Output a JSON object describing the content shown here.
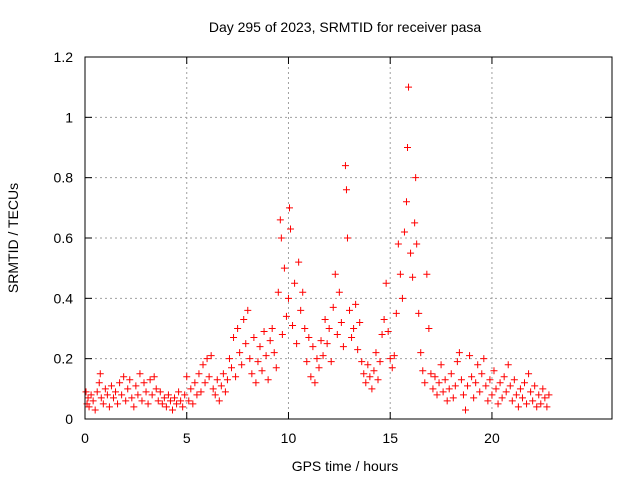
{
  "chart_data": {
    "type": "scatter",
    "title": "Day 295 of 2023, SRMTID for receiver pasa",
    "xlabel": "GPS time / hours",
    "ylabel": "SRMTID / TECUs",
    "xlim": [
      0,
      25.9
    ],
    "ylim": [
      0,
      1.2
    ],
    "xticks": [
      0,
      5,
      10,
      15,
      20
    ],
    "xtick_labels": [
      "0",
      "5",
      "10",
      "15",
      "20"
    ],
    "yticks": [
      0,
      0.2,
      0.4,
      0.6,
      0.8,
      1.0,
      1.2
    ],
    "ytick_labels": [
      "0",
      "0.2",
      "0.4",
      "0.6",
      "0.8",
      "1",
      "1.2"
    ],
    "grid": true,
    "marker": "+",
    "series": [
      {
        "name": "SRMTID",
        "color": "#ff0000",
        "points": [
          [
            0.05,
            0.09
          ],
          [
            0.1,
            0.05
          ],
          [
            0.15,
            0.07
          ],
          [
            0.2,
            0.04
          ],
          [
            0.3,
            0.08
          ],
          [
            0.4,
            0.06
          ],
          [
            0.5,
            0.03
          ],
          [
            0.6,
            0.09
          ],
          [
            0.7,
            0.12
          ],
          [
            0.75,
            0.15
          ],
          [
            0.8,
            0.07
          ],
          [
            0.9,
            0.05
          ],
          [
            1.0,
            0.1
          ],
          [
            1.1,
            0.08
          ],
          [
            1.2,
            0.04
          ],
          [
            1.3,
            0.11
          ],
          [
            1.4,
            0.07
          ],
          [
            1.5,
            0.09
          ],
          [
            1.6,
            0.05
          ],
          [
            1.7,
            0.12
          ],
          [
            1.8,
            0.08
          ],
          [
            1.9,
            0.14
          ],
          [
            2.0,
            0.06
          ],
          [
            2.1,
            0.1
          ],
          [
            2.2,
            0.13
          ],
          [
            2.3,
            0.07
          ],
          [
            2.4,
            0.04
          ],
          [
            2.5,
            0.11
          ],
          [
            2.6,
            0.08
          ],
          [
            2.7,
            0.15
          ],
          [
            2.8,
            0.06
          ],
          [
            2.9,
            0.12
          ],
          [
            3.0,
            0.09
          ],
          [
            3.1,
            0.05
          ],
          [
            3.2,
            0.13
          ],
          [
            3.3,
            0.08
          ],
          [
            3.4,
            0.14
          ],
          [
            3.5,
            0.1
          ],
          [
            3.6,
            0.06
          ],
          [
            3.7,
            0.09
          ],
          [
            3.8,
            0.05
          ],
          [
            3.9,
            0.07
          ],
          [
            4.0,
            0.04
          ],
          [
            4.1,
            0.08
          ],
          [
            4.2,
            0.06
          ],
          [
            4.3,
            0.03
          ],
          [
            4.4,
            0.07
          ],
          [
            4.5,
            0.05
          ],
          [
            4.6,
            0.09
          ],
          [
            4.7,
            0.06
          ],
          [
            4.8,
            0.04
          ],
          [
            4.9,
            0.08
          ],
          [
            5.0,
            0.14
          ],
          [
            5.1,
            0.06
          ],
          [
            5.2,
            0.1
          ],
          [
            5.3,
            0.05
          ],
          [
            5.4,
            0.12
          ],
          [
            5.5,
            0.08
          ],
          [
            5.6,
            0.15
          ],
          [
            5.7,
            0.09
          ],
          [
            5.8,
            0.18
          ],
          [
            5.9,
            0.12
          ],
          [
            6.0,
            0.2
          ],
          [
            6.1,
            0.14
          ],
          [
            6.2,
            0.21
          ],
          [
            6.3,
            0.1
          ],
          [
            6.4,
            0.08
          ],
          [
            6.5,
            0.13
          ],
          [
            6.6,
            0.06
          ],
          [
            6.7,
            0.11
          ],
          [
            6.8,
            0.15
          ],
          [
            6.9,
            0.09
          ],
          [
            7.0,
            0.13
          ],
          [
            7.1,
            0.2
          ],
          [
            7.2,
            0.17
          ],
          [
            7.3,
            0.27
          ],
          [
            7.4,
            0.14
          ],
          [
            7.5,
            0.3
          ],
          [
            7.6,
            0.22
          ],
          [
            7.7,
            0.18
          ],
          [
            7.8,
            0.33
          ],
          [
            7.9,
            0.25
          ],
          [
            8.0,
            0.36
          ],
          [
            8.1,
            0.2
          ],
          [
            8.2,
            0.15
          ],
          [
            8.3,
            0.27
          ],
          [
            8.4,
            0.12
          ],
          [
            8.5,
            0.19
          ],
          [
            8.6,
            0.24
          ],
          [
            8.7,
            0.16
          ],
          [
            8.8,
            0.29
          ],
          [
            8.9,
            0.21
          ],
          [
            9.0,
            0.13
          ],
          [
            9.1,
            0.26
          ],
          [
            9.2,
            0.3
          ],
          [
            9.3,
            0.22
          ],
          [
            9.4,
            0.17
          ],
          [
            9.5,
            0.42
          ],
          [
            9.6,
            0.66
          ],
          [
            9.65,
            0.6
          ],
          [
            9.7,
            0.28
          ],
          [
            9.8,
            0.5
          ],
          [
            9.9,
            0.34
          ],
          [
            10.0,
            0.4
          ],
          [
            10.05,
            0.7
          ],
          [
            10.1,
            0.63
          ],
          [
            10.2,
            0.31
          ],
          [
            10.3,
            0.45
          ],
          [
            10.4,
            0.25
          ],
          [
            10.5,
            0.52
          ],
          [
            10.6,
            0.36
          ],
          [
            10.7,
            0.42
          ],
          [
            10.8,
            0.3
          ],
          [
            10.9,
            0.19
          ],
          [
            11.0,
            0.27
          ],
          [
            11.1,
            0.14
          ],
          [
            11.2,
            0.24
          ],
          [
            11.3,
            0.12
          ],
          [
            11.4,
            0.2
          ],
          [
            11.5,
            0.17
          ],
          [
            11.6,
            0.26
          ],
          [
            11.7,
            0.21
          ],
          [
            11.8,
            0.33
          ],
          [
            11.9,
            0.25
          ],
          [
            12.0,
            0.3
          ],
          [
            12.1,
            0.19
          ],
          [
            12.2,
            0.37
          ],
          [
            12.3,
            0.48
          ],
          [
            12.4,
            0.28
          ],
          [
            12.5,
            0.42
          ],
          [
            12.6,
            0.32
          ],
          [
            12.7,
            0.24
          ],
          [
            12.8,
            0.84
          ],
          [
            12.85,
            0.76
          ],
          [
            12.9,
            0.6
          ],
          [
            13.0,
            0.36
          ],
          [
            13.1,
            0.27
          ],
          [
            13.2,
            0.3
          ],
          [
            13.3,
            0.38
          ],
          [
            13.4,
            0.23
          ],
          [
            13.5,
            0.32
          ],
          [
            13.6,
            0.19
          ],
          [
            13.7,
            0.15
          ],
          [
            13.8,
            0.12
          ],
          [
            13.9,
            0.18
          ],
          [
            14.0,
            0.14
          ],
          [
            14.1,
            0.1
          ],
          [
            14.2,
            0.16
          ],
          [
            14.3,
            0.22
          ],
          [
            14.4,
            0.13
          ],
          [
            14.5,
            0.19
          ],
          [
            14.6,
            0.28
          ],
          [
            14.7,
            0.33
          ],
          [
            14.8,
            0.45
          ],
          [
            14.9,
            0.29
          ],
          [
            15.0,
            0.2
          ],
          [
            15.1,
            0.17
          ],
          [
            15.2,
            0.21
          ],
          [
            15.3,
            0.35
          ],
          [
            15.4,
            0.58
          ],
          [
            15.5,
            0.48
          ],
          [
            15.6,
            0.4
          ],
          [
            15.7,
            0.62
          ],
          [
            15.8,
            0.72
          ],
          [
            15.85,
            0.9
          ],
          [
            15.9,
            1.1
          ],
          [
            16.0,
            0.55
          ],
          [
            16.1,
            0.47
          ],
          [
            16.2,
            0.65
          ],
          [
            16.25,
            0.8
          ],
          [
            16.3,
            0.58
          ],
          [
            16.4,
            0.35
          ],
          [
            16.5,
            0.22
          ],
          [
            16.6,
            0.16
          ],
          [
            16.7,
            0.12
          ],
          [
            16.8,
            0.48
          ],
          [
            16.9,
            0.3
          ],
          [
            17.0,
            0.15
          ],
          [
            17.1,
            0.1
          ],
          [
            17.2,
            0.14
          ],
          [
            17.3,
            0.08
          ],
          [
            17.4,
            0.12
          ],
          [
            17.5,
            0.18
          ],
          [
            17.6,
            0.09
          ],
          [
            17.7,
            0.13
          ],
          [
            17.8,
            0.06
          ],
          [
            17.9,
            0.1
          ],
          [
            18.0,
            0.15
          ],
          [
            18.1,
            0.07
          ],
          [
            18.2,
            0.11
          ],
          [
            18.3,
            0.19
          ],
          [
            18.4,
            0.22
          ],
          [
            18.5,
            0.13
          ],
          [
            18.6,
            0.08
          ],
          [
            18.7,
            0.03
          ],
          [
            18.8,
            0.11
          ],
          [
            18.9,
            0.21
          ],
          [
            19.0,
            0.14
          ],
          [
            19.1,
            0.07
          ],
          [
            19.2,
            0.12
          ],
          [
            19.3,
            0.18
          ],
          [
            19.4,
            0.09
          ],
          [
            19.5,
            0.15
          ],
          [
            19.6,
            0.2
          ],
          [
            19.7,
            0.11
          ],
          [
            19.8,
            0.06
          ],
          [
            19.9,
            0.13
          ],
          [
            20.0,
            0.08
          ],
          [
            20.1,
            0.16
          ],
          [
            20.2,
            0.1
          ],
          [
            20.3,
            0.05
          ],
          [
            20.4,
            0.12
          ],
          [
            20.5,
            0.07
          ],
          [
            20.6,
            0.14
          ],
          [
            20.7,
            0.09
          ],
          [
            20.8,
            0.18
          ],
          [
            20.9,
            0.11
          ],
          [
            21.0,
            0.06
          ],
          [
            21.1,
            0.13
          ],
          [
            21.2,
            0.08
          ],
          [
            21.3,
            0.04
          ],
          [
            21.4,
            0.1
          ],
          [
            21.5,
            0.07
          ],
          [
            21.6,
            0.12
          ],
          [
            21.7,
            0.05
          ],
          [
            21.8,
            0.15
          ],
          [
            21.9,
            0.09
          ],
          [
            22.0,
            0.06
          ],
          [
            22.1,
            0.11
          ],
          [
            22.2,
            0.04
          ],
          [
            22.3,
            0.08
          ],
          [
            22.4,
            0.05
          ],
          [
            22.5,
            0.1
          ],
          [
            22.6,
            0.07
          ],
          [
            22.7,
            0.04
          ],
          [
            22.8,
            0.08
          ]
        ]
      }
    ]
  }
}
